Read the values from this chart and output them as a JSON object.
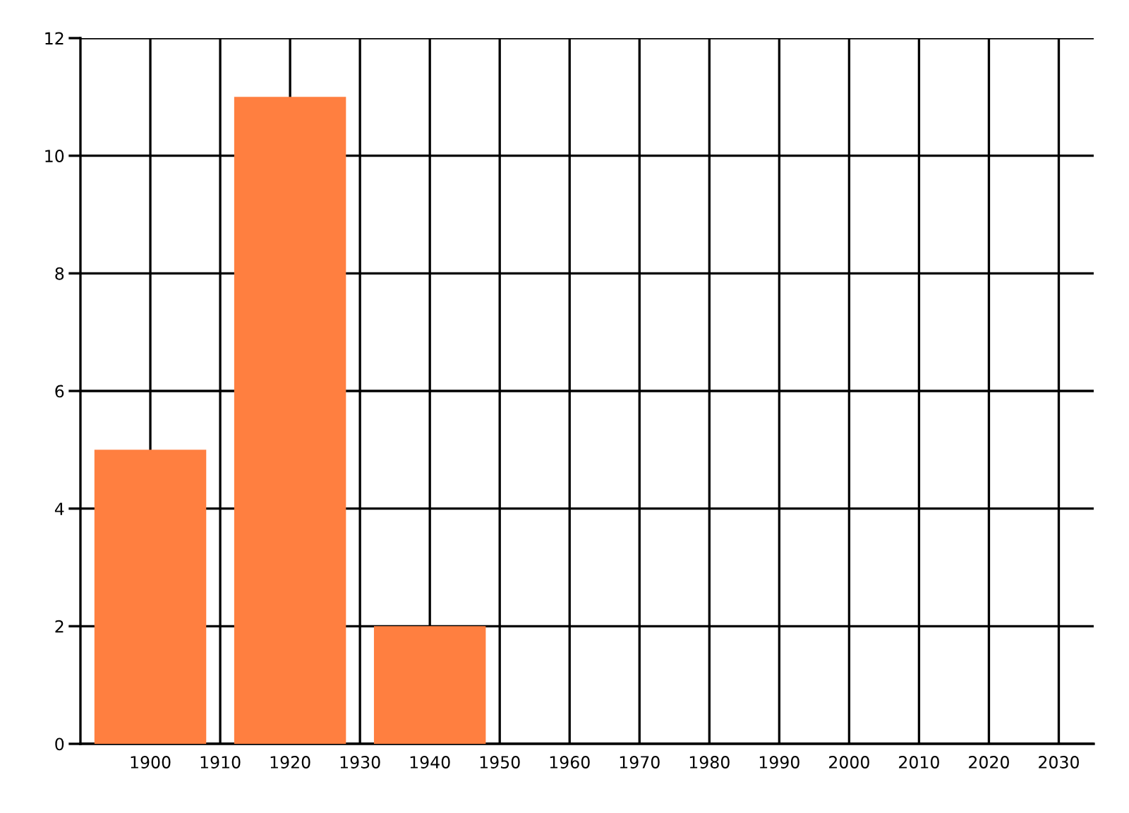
{
  "chart_data": {
    "type": "bar",
    "x": [
      1900,
      1920,
      1940
    ],
    "values": [
      5,
      11,
      2
    ],
    "color": "#ff7f40",
    "xlim": [
      1890,
      2035
    ],
    "xticks": [
      1900,
      1910,
      1920,
      1930,
      1940,
      1950,
      1960,
      1970,
      1980,
      1990,
      2000,
      2010,
      2020,
      2030
    ],
    "ylim": [
      0,
      12
    ],
    "yticks": [
      0,
      2,
      4,
      6,
      8,
      10,
      12
    ],
    "grid": true
  }
}
